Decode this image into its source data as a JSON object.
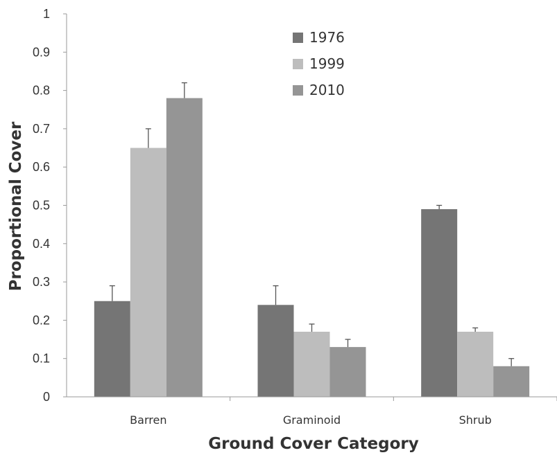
{
  "chart_data": {
    "type": "bar",
    "title": "",
    "xlabel": "Ground Cover Category",
    "ylabel": "Proportional Cover",
    "categories": [
      "Barren",
      "Graminoid",
      "Shrub"
    ],
    "series": [
      {
        "name": "1976",
        "color": "#757575",
        "values": [
          0.25,
          0.24,
          0.49
        ],
        "errors": [
          0.04,
          0.05,
          0.01
        ]
      },
      {
        "name": "1999",
        "color": "#bdbdbd",
        "values": [
          0.65,
          0.17,
          0.17
        ],
        "errors": [
          0.05,
          0.02,
          0.01
        ]
      },
      {
        "name": "2010",
        "color": "#959595",
        "values": [
          0.78,
          0.13,
          0.08
        ],
        "errors": [
          0.04,
          0.02,
          0.02
        ]
      }
    ],
    "ylim": [
      0,
      1
    ],
    "yticks": [
      "0",
      "0.1",
      "0.2",
      "0.3",
      "0.4",
      "0.5",
      "0.6",
      "0.7",
      "0.8",
      "0.9",
      "1"
    ],
    "grid": false,
    "legend_position": "top-center",
    "error_bars": true
  }
}
